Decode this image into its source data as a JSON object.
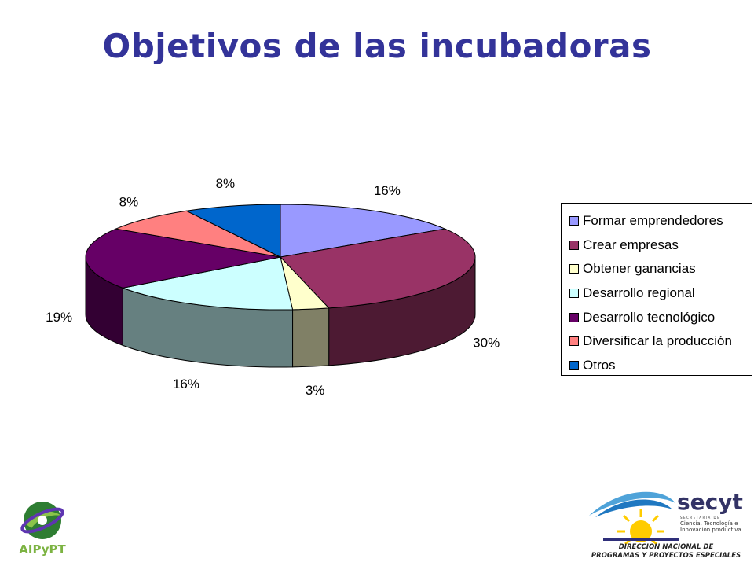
{
  "title": "Objetivos de las incubadoras",
  "chart_data": {
    "type": "pie",
    "title": "",
    "legend_position": "right",
    "slices": [
      {
        "name": "Formar emprendedores",
        "value": 16,
        "label": "16%",
        "color": "#9999FF"
      },
      {
        "name": "Crear empresas",
        "value": 30,
        "label": "30%",
        "color": "#993366"
      },
      {
        "name": "Obtener ganancias",
        "value": 3,
        "label": "3%",
        "color": "#FFFFCC"
      },
      {
        "name": "Desarrollo regional",
        "value": 16,
        "label": "16%",
        "color": "#CCFFFF"
      },
      {
        "name": "Desarrollo tecnológico",
        "value": 19,
        "label": "19%",
        "color": "#660066"
      },
      {
        "name": "Diversificar la producción",
        "value": 8,
        "label": "8%",
        "color": "#FF8080"
      },
      {
        "name": "Otros",
        "value": 8,
        "label": "8%",
        "color": "#0066CC"
      }
    ]
  },
  "logos": {
    "left_text": "AIPyPT",
    "right_brand": "secyt",
    "right_line1": "SECRETARIA DE",
    "right_line2": "Ciencia, Tecnología e",
    "right_line3": "Innovación productiva",
    "right_footer1": "DIRECCION NACIONAL DE",
    "right_footer2": "PROGRAMAS Y PROYECTOS ESPECIALES"
  }
}
